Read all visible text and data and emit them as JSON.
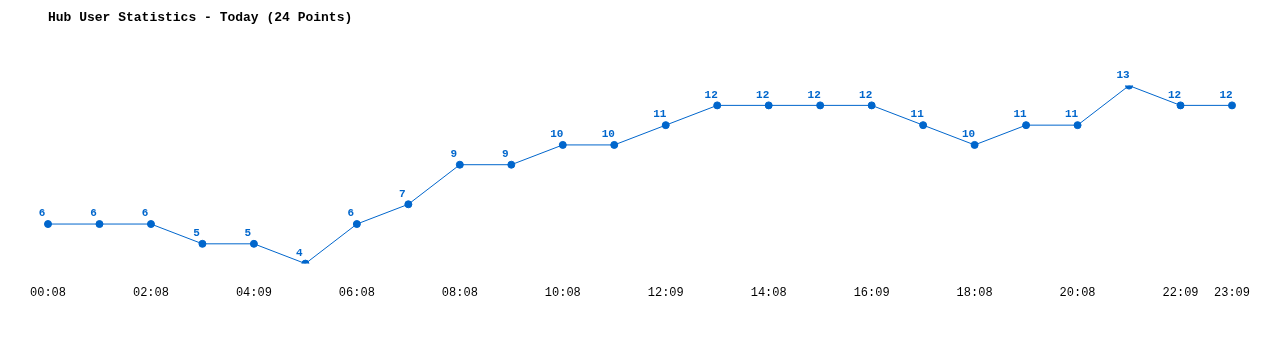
{
  "chart_data": {
    "type": "line",
    "title": "Hub User Statistics - Today (24 Points)",
    "categories": [
      "00:08",
      null,
      "02:08",
      null,
      "04:09",
      null,
      "06:08",
      null,
      "08:08",
      null,
      "10:08",
      null,
      "12:09",
      null,
      "14:08",
      null,
      "16:09",
      null,
      "18:08",
      null,
      "20:08",
      null,
      "22:09",
      "23:09"
    ],
    "series": [
      {
        "color": "#0066cc",
        "values": [
          6,
          6,
          6,
          5,
          5,
          4,
          6,
          7,
          9,
          9,
          10,
          10,
          11,
          12,
          12,
          12,
          12,
          11,
          10,
          11,
          11,
          13,
          12,
          12
        ]
      }
    ],
    "data_labels": true,
    "marker": "circle",
    "line_style": "solid"
  }
}
